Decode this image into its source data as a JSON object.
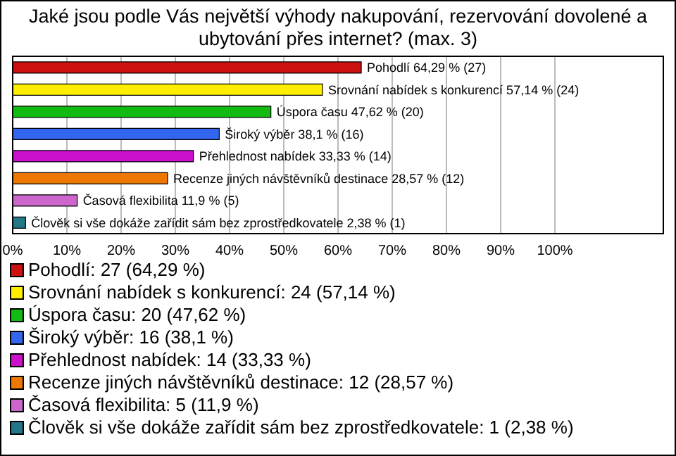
{
  "chart_data": {
    "type": "bar",
    "orientation": "horizontal",
    "stacked": true,
    "title": "Jaké jsou podle Vás největší výhody nakupování, rezervování dovolené a ubytování přes internet? (max. 3)",
    "categories": [
      null,
      null,
      null,
      null,
      null,
      null,
      null,
      null
    ],
    "series": [
      {
        "name": "Pohodlí: 27 (64,29 %)",
        "color": "#cc1111",
        "values": [
          64.29,
          null,
          null,
          null,
          null,
          null,
          null,
          null
        ],
        "value_labels": [
          "Pohodlí 64,29 % (27)",
          null,
          null,
          null,
          null,
          null,
          null,
          null
        ]
      },
      {
        "name": "Srovnání nabídek s konkurencí: 24 (57,14 %)",
        "color": "#ffee00",
        "values": [
          null,
          57.14,
          null,
          null,
          null,
          null,
          null,
          null
        ],
        "value_labels": [
          null,
          "Srovnání nabídek s konkurencí 57,14 % (24)",
          null,
          null,
          null,
          null,
          null,
          null
        ]
      },
      {
        "name": "Úspora času: 20 (47,62 %)",
        "color": "#11bb11",
        "values": [
          null,
          null,
          47.62,
          null,
          null,
          null,
          null,
          null
        ],
        "value_labels": [
          null,
          null,
          "Úspora času 47,62 % (20)",
          null,
          null,
          null,
          null,
          null
        ]
      },
      {
        "name": "Široký výběr: 16 (38,1 %)",
        "color": "#3366ee",
        "values": [
          null,
          null,
          null,
          38.1,
          null,
          null,
          null,
          null
        ],
        "value_labels": [
          null,
          null,
          null,
          "Široký výběr 38,1 % (16)",
          null,
          null,
          null,
          null
        ]
      },
      {
        "name": "Přehlednost nabídek: 14 (33,33 %)",
        "color": "#cc11cc",
        "values": [
          null,
          null,
          null,
          null,
          33.33,
          null,
          null,
          null
        ],
        "value_labels": [
          null,
          null,
          null,
          null,
          "Přehlednost nabídek 33,33 % (14)",
          null,
          null,
          null
        ]
      },
      {
        "name": "Recenze jiných návštěvníků destinace: 12 (28,57 %)",
        "color": "#ee7700",
        "values": [
          null,
          null,
          null,
          null,
          null,
          28.57,
          null,
          null
        ],
        "value_labels": [
          null,
          null,
          null,
          null,
          null,
          "Recenze jiných návštěvníků destinace 28,57 % (12)",
          null,
          null
        ]
      },
      {
        "name": "Časová flexibilita: 5 (11,9 %)",
        "color": "#cc66cc",
        "values": [
          null,
          null,
          null,
          null,
          null,
          null,
          11.9,
          null
        ],
        "value_labels": [
          null,
          null,
          null,
          null,
          null,
          null,
          "Časová flexibilita 11,9 % (5)",
          null
        ]
      },
      {
        "name": "Člověk si vše dokáže zařídit sám bez zprostředkovatele: 1 (2,38 %)",
        "color": "#227788",
        "values": [
          null,
          null,
          null,
          null,
          null,
          null,
          null,
          2.38
        ],
        "value_labels": [
          null,
          null,
          null,
          null,
          null,
          null,
          null,
          "Člověk si vše dokáže zařídit sám bez zprostředkovatele 2,38 % (1)"
        ]
      }
    ],
    "xlim": [
      0,
      120
    ],
    "xticks": [
      {
        "value": 0,
        "label": "0%"
      },
      {
        "value": 10,
        "label": "10%"
      },
      {
        "value": 20,
        "label": "20%"
      },
      {
        "value": 30,
        "label": "30%"
      },
      {
        "value": 40,
        "label": "40%"
      },
      {
        "value": 50,
        "label": "50%"
      },
      {
        "value": 60,
        "label": "60%"
      },
      {
        "value": 70,
        "label": "70%"
      },
      {
        "value": 80,
        "label": "80%"
      },
      {
        "value": 90,
        "label": "90%"
      },
      {
        "value": 100,
        "label": "100%"
      }
    ],
    "grid": "x",
    "legend": "bottom"
  }
}
